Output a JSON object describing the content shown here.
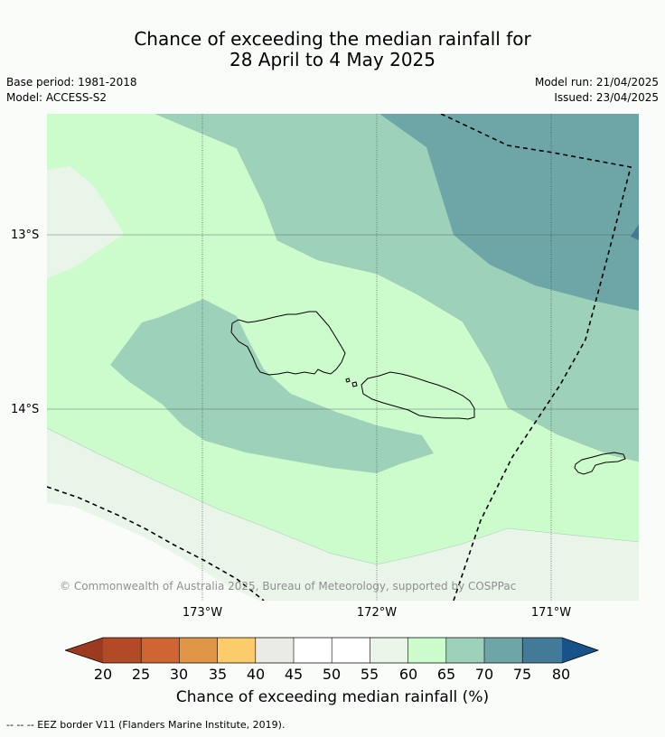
{
  "title": {
    "line1": "Chance of exceeding the median rainfall for",
    "line2": "28 April to 4 May 2025"
  },
  "info": {
    "base_period": "Base period: 1981-2018",
    "model": "Model: ACCESS-S2",
    "model_run": "Model run: 21/04/2025",
    "issued": "Issued: 23/04/2025"
  },
  "map": {
    "copyright": "© Commonwealth of Australia 2025, Bureau of Meteorology, supported by COSPPac",
    "lat_labels": [
      "13°S",
      "14°S"
    ],
    "lon_labels": [
      "173°W",
      "172°W",
      "171°W"
    ]
  },
  "colorbar": {
    "title": "Chance of exceeding median rainfall (%)",
    "ticks": [
      "20",
      "25",
      "30",
      "35",
      "40",
      "45",
      "50",
      "55",
      "60",
      "65",
      "70",
      "75",
      "80"
    ],
    "colors": {
      "below_20": "#9b3a1e",
      "20_25": "#b34a27",
      "25_30": "#cf6532",
      "30_35": "#e19546",
      "35_40": "#fdcc6a",
      "40_45": "#eaeae7",
      "45_50": "#ffffff",
      "50_55": "#ffffff",
      "55_60": "#eaf5ea",
      "60_65": "#ccfccc",
      "65_70": "#9ed1b9",
      "70_75": "#6ea6a7",
      "75_80": "#437a98",
      "above_80": "#175289"
    }
  },
  "footer": {
    "eez_note": "--  --  -- EEZ border V11 (Flanders Marine Institute, 2019)."
  }
}
